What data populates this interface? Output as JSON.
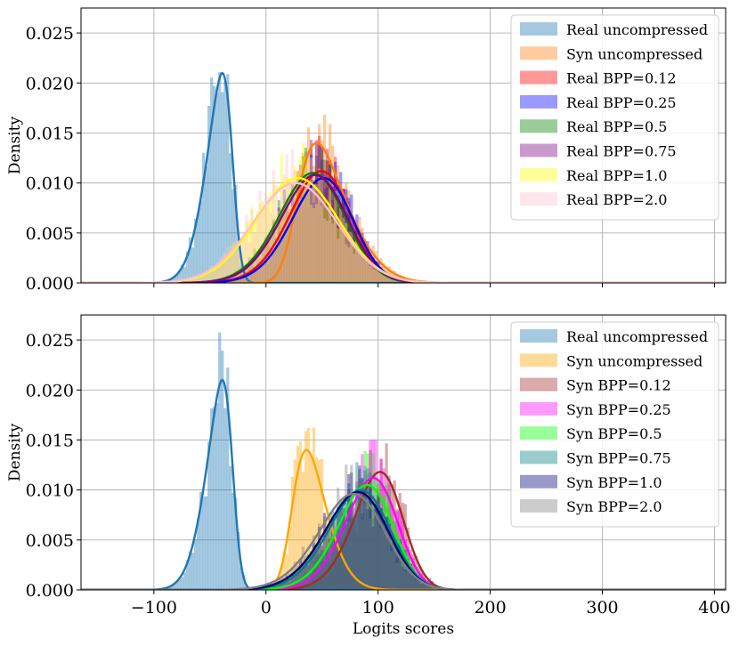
{
  "chart_data": [
    {
      "type": "histogram-kde",
      "xlim": [
        -165,
        410
      ],
      "ylim": [
        0,
        0.0275
      ],
      "xticks": [
        -100,
        0,
        100,
        200,
        300,
        400
      ],
      "yticks": [
        0,
        0.005,
        0.01,
        0.015,
        0.02,
        0.025
      ],
      "ytick_labels": [
        "0.000",
        "0.005",
        "0.010",
        "0.015",
        "0.020",
        "0.025"
      ],
      "ylabel": "Density",
      "xlabel": "",
      "show_xtick_labels": false,
      "grid": true,
      "legend_position": "top-right",
      "series": [
        {
          "name": "Real uncompressed",
          "color": "#1f77b4",
          "mean": -30,
          "std": 19,
          "skew": -3.0,
          "peak": 0.021
        },
        {
          "name": "Syn uncompressed",
          "color": "#ff7f0e",
          "mean": 28,
          "std": 36,
          "skew": 3.0,
          "peak": 0.014
        },
        {
          "name": "Real BPP=0.12",
          "color": "#ff0000",
          "mean": 68,
          "std": 35,
          "skew": -1.2,
          "peak": 0.0112
        },
        {
          "name": "Real BPP=0.25",
          "color": "#0000ff",
          "mean": 70,
          "std": 35,
          "skew": -1.2,
          "peak": 0.0105
        },
        {
          "name": "Real BPP=0.5",
          "color": "#008000",
          "mean": 60,
          "std": 36,
          "skew": -1.0,
          "peak": 0.011
        },
        {
          "name": "Real BPP=0.75",
          "color": "#800080",
          "mean": 62,
          "std": 36,
          "skew": -1.0,
          "peak": 0.0108
        },
        {
          "name": "Real BPP=1.0",
          "color": "#ffff00",
          "mean": 44,
          "std": 40,
          "skew": -0.6,
          "peak": 0.0105
        },
        {
          "name": "Real BPP=2.0",
          "color": "#ffc0cb",
          "mean": 40,
          "std": 40,
          "skew": -0.5,
          "peak": 0.01
        }
      ]
    },
    {
      "type": "histogram-kde",
      "xlim": [
        -165,
        410
      ],
      "ylim": [
        0,
        0.0275
      ],
      "xticks": [
        -100,
        0,
        100,
        200,
        300,
        400
      ],
      "xtick_labels": [
        "−100",
        "0",
        "100",
        "200",
        "300",
        "400"
      ],
      "yticks": [
        0,
        0.005,
        0.01,
        0.015,
        0.02,
        0.025
      ],
      "ytick_labels": [
        "0.000",
        "0.005",
        "0.010",
        "0.015",
        "0.020",
        "0.025"
      ],
      "ylabel": "Density",
      "xlabel": "Logits scores",
      "show_xtick_labels": true,
      "grid": true,
      "legend_position": "top-right",
      "series": [
        {
          "name": "Real uncompressed",
          "color": "#1f77b4",
          "mean": -30,
          "std": 19,
          "skew": -3.0,
          "peak": 0.021
        },
        {
          "name": "Syn uncompressed",
          "color": "#ffa500",
          "mean": 24,
          "std": 24,
          "skew": 2.5,
          "peak": 0.014
        },
        {
          "name": "Syn BPP=0.12",
          "color": "#a52a2a",
          "mean": 118,
          "std": 30,
          "skew": -1.5,
          "peak": 0.0118
        },
        {
          "name": "Syn BPP=0.25",
          "color": "#ff00ff",
          "mean": 113,
          "std": 32,
          "skew": -1.5,
          "peak": 0.0112
        },
        {
          "name": "Syn BPP=0.5",
          "color": "#00ff00",
          "mean": 108,
          "std": 33,
          "skew": -1.4,
          "peak": 0.0105
        },
        {
          "name": "Syn BPP=0.75",
          "color": "#008080",
          "mean": 104,
          "std": 36,
          "skew": -1.3,
          "peak": 0.01
        },
        {
          "name": "Syn BPP=1.0",
          "color": "#000080",
          "mean": 102,
          "std": 37,
          "skew": -1.3,
          "peak": 0.0098
        },
        {
          "name": "Syn BPP=2.0",
          "color": "#808080",
          "mean": 98,
          "std": 38,
          "skew": -1.2,
          "peak": 0.0096
        }
      ]
    }
  ]
}
